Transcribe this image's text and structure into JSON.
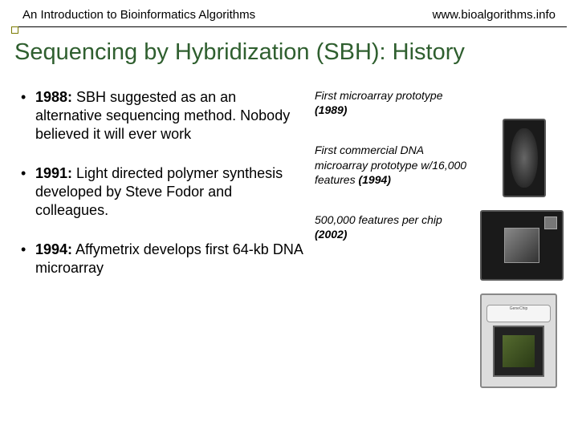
{
  "header": {
    "left": "An Introduction to Bioinformatics Algorithms",
    "right": "www.bioalgorithms.info"
  },
  "title": "Sequencing by Hybridization (SBH): History",
  "bullets": [
    {
      "year": "1988:",
      "text": "  SBH suggested as an an alternative sequencing method. Nobody believed it will ever work"
    },
    {
      "year": "1991:",
      "text": "  Light directed polymer synthesis developed by Steve Fodor and colleagues."
    },
    {
      "year": "1994:",
      "text": "  Affymetrix develops first 64-kb DNA microarray"
    }
  ],
  "captions": [
    {
      "text": "First microarray prototype ",
      "year": "(1989)"
    },
    {
      "text": "First commercial DNA microarray prototype w/16,000 features ",
      "year": "(1994)"
    },
    {
      "text": "500,000 features per chip ",
      "year": "(2002)"
    }
  ],
  "chip3label": "GeneChip",
  "colors": {
    "title": "#2f5f2f",
    "text": "#000000",
    "bg": "#ffffff"
  }
}
